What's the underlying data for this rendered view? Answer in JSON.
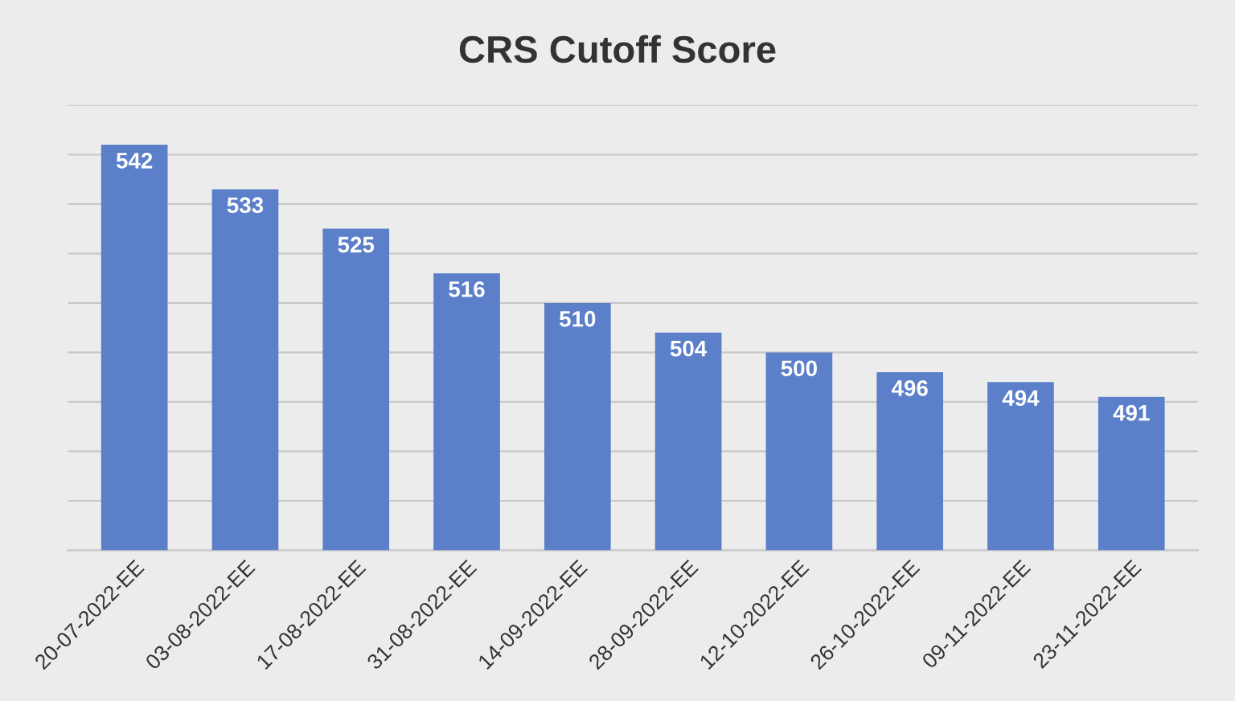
{
  "chart_data": {
    "type": "bar",
    "title": "CRS Cutoff Score",
    "categories": [
      "20-07-2022-EE",
      "03-08-2022-EE",
      "17-08-2022-EE",
      "31-08-2022-EE",
      "14-09-2022-EE",
      "28-09-2022-EE",
      "12-10-2022-EE",
      "26-10-2022-EE",
      "09-11-2022-EE",
      "23-11-2022-EE"
    ],
    "values": [
      542,
      533,
      525,
      516,
      510,
      504,
      500,
      496,
      494,
      491
    ],
    "color": "#5b7fc9",
    "ylim": [
      460,
      550
    ],
    "yticks": [
      {
        "value": 460,
        "label": null
      },
      {
        "value": 470,
        "label": null
      },
      {
        "value": 480,
        "label": null
      },
      {
        "value": 490,
        "label": null
      },
      {
        "value": 500,
        "label": null
      },
      {
        "value": 510,
        "label": null
      },
      {
        "value": 520,
        "label": null
      },
      {
        "value": 530,
        "label": null
      },
      {
        "value": 540,
        "label": null
      },
      {
        "value": 550,
        "label": null
      }
    ],
    "grid": "y",
    "data_labels": true,
    "tick_labels": "x"
  }
}
